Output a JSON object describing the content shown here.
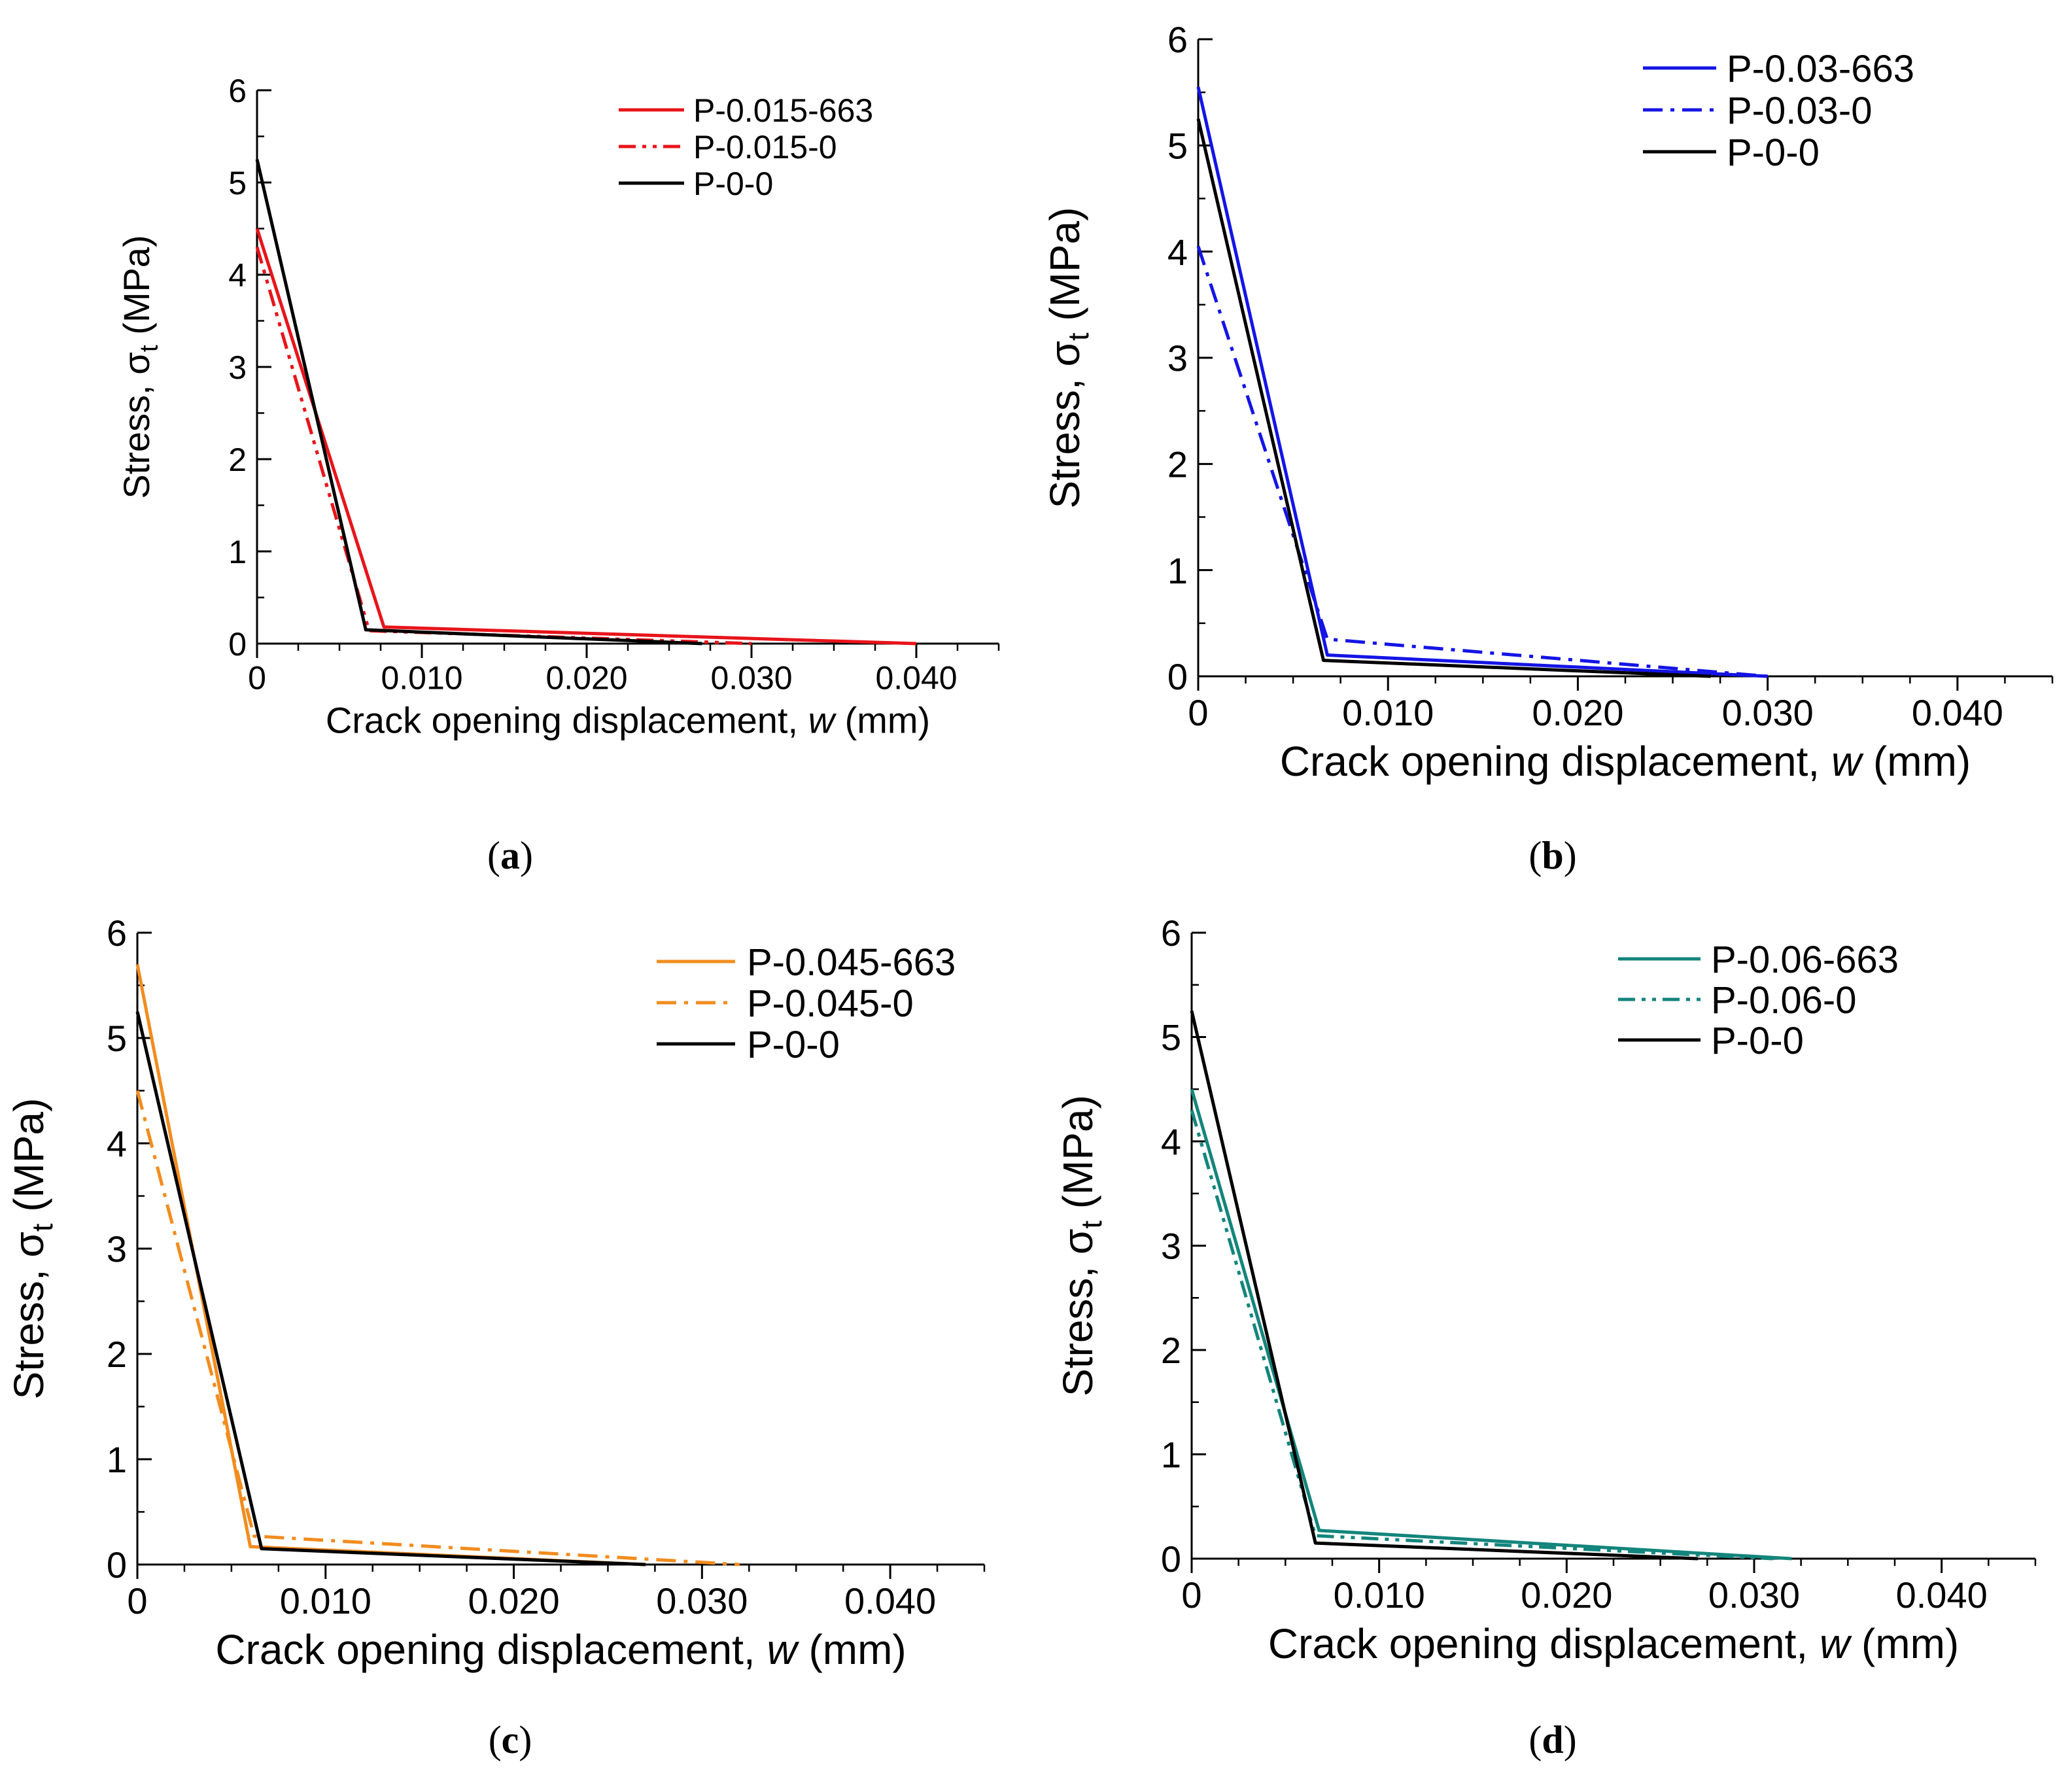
{
  "chart_data": [
    {
      "panel": "(a)",
      "panel_letter": "a",
      "type": "line",
      "xlabel_prefix": "Crack opening displacement, ",
      "xlabel_var": "w",
      "xlabel_suffix": " (mm)",
      "ylabel_prefix": "Stress, σ",
      "ylabel_sub": "t",
      "ylabel_suffix": " (MPa)",
      "xlim": [
        0,
        0.045
      ],
      "ylim": [
        0,
        6
      ],
      "xticks": [
        0,
        0.01,
        0.02,
        0.03,
        0.04
      ],
      "xtick_labels": [
        "0",
        "0.010",
        "0.020",
        "0.030",
        "0.040"
      ],
      "yticks": [
        0,
        1,
        2,
        3,
        4,
        5,
        6
      ],
      "ytick_labels": [
        "0",
        "1",
        "2",
        "3",
        "4",
        "5",
        "6"
      ],
      "series": [
        {
          "name": "P-0.015-663",
          "color": "#e8141b",
          "dash": "solid",
          "x": [
            0,
            0.0077,
            0.04
          ],
          "y": [
            4.5,
            0.18,
            0.0
          ]
        },
        {
          "name": "P-0.015-0",
          "color": "#e8141b",
          "dash": "dashdotdot",
          "x": [
            0,
            0.0068,
            0.03
          ],
          "y": [
            4.3,
            0.14,
            0.0
          ]
        },
        {
          "name": "P-0-0",
          "color": "#000000",
          "dash": "solid",
          "x": [
            0,
            0.0066,
            0.027
          ],
          "y": [
            5.25,
            0.15,
            0.0
          ]
        }
      ]
    },
    {
      "panel": "(b)",
      "panel_letter": "b",
      "type": "line",
      "xlabel_prefix": "Crack opening displacement, ",
      "xlabel_var": "w",
      "xlabel_suffix": " (mm)",
      "ylabel_prefix": "Stress, σ",
      "ylabel_sub": "t",
      "ylabel_suffix": " (MPa)",
      "xlim": [
        0,
        0.045
      ],
      "ylim": [
        0,
        6
      ],
      "xticks": [
        0,
        0.01,
        0.02,
        0.03,
        0.04
      ],
      "xtick_labels": [
        "0",
        "0.010",
        "0.020",
        "0.030",
        "0.040"
      ],
      "yticks": [
        0,
        1,
        2,
        3,
        4,
        5,
        6
      ],
      "ytick_labels": [
        "0",
        "1",
        "2",
        "3",
        "4",
        "5",
        "6"
      ],
      "series": [
        {
          "name": "P-0.03-663",
          "color": "#1414e6",
          "dash": "solid",
          "x": [
            0,
            0.0068,
            0.03
          ],
          "y": [
            5.55,
            0.2,
            0.0
          ]
        },
        {
          "name": "P-0.03-0",
          "color": "#1414e6",
          "dash": "dashdot",
          "x": [
            0,
            0.0068,
            0.03
          ],
          "y": [
            4.05,
            0.35,
            0.0
          ]
        },
        {
          "name": "P-0-0",
          "color": "#000000",
          "dash": "solid",
          "x": [
            0,
            0.0066,
            0.027
          ],
          "y": [
            5.25,
            0.15,
            0.0
          ]
        }
      ]
    },
    {
      "panel": "(c)",
      "panel_letter": "c",
      "type": "line",
      "xlabel_prefix": "Crack opening displacement, ",
      "xlabel_var": "w",
      "xlabel_suffix": " (mm)",
      "ylabel_prefix": "Stress, σ",
      "ylabel_sub": "t",
      "ylabel_suffix": " (MPa)",
      "xlim": [
        0,
        0.045
      ],
      "ylim": [
        0,
        6
      ],
      "xticks": [
        0,
        0.01,
        0.02,
        0.03,
        0.04
      ],
      "xtick_labels": [
        "0",
        "0.010",
        "0.020",
        "0.030",
        "0.040"
      ],
      "yticks": [
        0,
        1,
        2,
        3,
        4,
        5,
        6
      ],
      "ytick_labels": [
        "0",
        "1",
        "2",
        "3",
        "4",
        "5",
        "6"
      ],
      "series": [
        {
          "name": "P-0.045-663",
          "color": "#f28c1e",
          "dash": "solid",
          "x": [
            0,
            0.006,
            0.027
          ],
          "y": [
            5.7,
            0.17,
            0.0
          ]
        },
        {
          "name": "P-0.045-0",
          "color": "#f28c1e",
          "dash": "dashdot",
          "x": [
            0,
            0.0062,
            0.032
          ],
          "y": [
            4.5,
            0.27,
            0.0
          ]
        },
        {
          "name": "P-0-0",
          "color": "#000000",
          "dash": "solid",
          "x": [
            0,
            0.0066,
            0.027
          ],
          "y": [
            5.25,
            0.15,
            0.0
          ]
        }
      ]
    },
    {
      "panel": "(d)",
      "panel_letter": "d",
      "type": "line",
      "xlabel_prefix": "Crack opening displacement, ",
      "xlabel_var": "w",
      "xlabel_suffix": " (mm)",
      "ylabel_prefix": "Stress, σ",
      "ylabel_sub": "t",
      "ylabel_suffix": " (MPa)",
      "xlim": [
        0,
        0.045
      ],
      "ylim": [
        0,
        6
      ],
      "xticks": [
        0,
        0.01,
        0.02,
        0.03,
        0.04
      ],
      "xtick_labels": [
        "0",
        "0.010",
        "0.020",
        "0.030",
        "0.040"
      ],
      "yticks": [
        0,
        1,
        2,
        3,
        4,
        5,
        6
      ],
      "ytick_labels": [
        "0",
        "1",
        "2",
        "3",
        "4",
        "5",
        "6"
      ],
      "series": [
        {
          "name": "P-0.06-663",
          "color": "#13857c",
          "dash": "solid",
          "x": [
            0,
            0.0068,
            0.032
          ],
          "y": [
            4.5,
            0.27,
            0.0
          ]
        },
        {
          "name": "P-0.06-0",
          "color": "#13857c",
          "dash": "dashdotdot",
          "x": [
            0,
            0.0066,
            0.031
          ],
          "y": [
            4.3,
            0.22,
            0.0
          ]
        },
        {
          "name": "P-0-0",
          "color": "#000000",
          "dash": "solid",
          "x": [
            0,
            0.0066,
            0.027
          ],
          "y": [
            5.25,
            0.15,
            0.0
          ]
        }
      ]
    }
  ]
}
